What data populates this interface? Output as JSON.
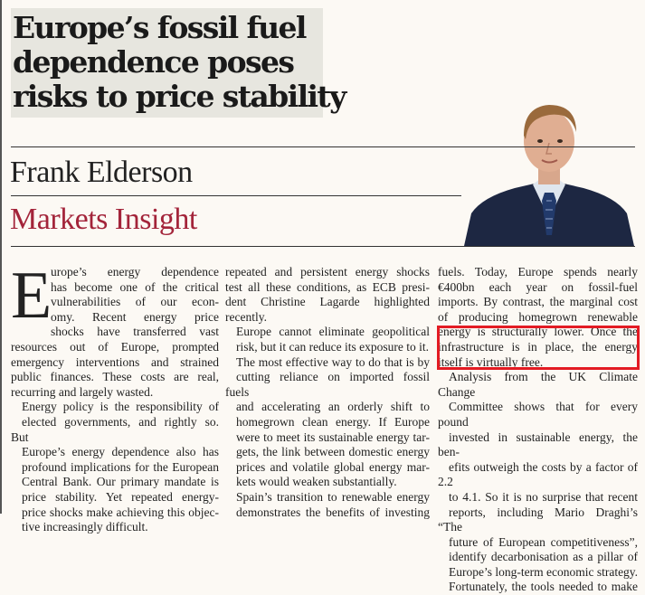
{
  "article": {
    "headline": {
      "line1": "Europe’s fossil fuel",
      "line2": "dependence poses",
      "line3": "risks to price stability"
    },
    "author": "Frank Elderson",
    "column": "Markets Insight",
    "photo_alt": "Portrait of Frank Elderson",
    "colors": {
      "background": "#fcf9f4",
      "headline_box": "#e7e6df",
      "column_name": "#a3243a",
      "highlight": "#e31b23"
    }
  },
  "body": {
    "col1": {
      "dropcap": "E",
      "p1_lines": [
        "urope’s energy dependence",
        "has become one of the critical",
        "vulnerabilities of our econ-",
        "omy. Recent energy price",
        "shocks have transferred vast"
      ],
      "p1_rest": [
        "resources out of Europe, prompted",
        "emergency interventions and strained",
        "public finances. These costs are real,",
        "recurring and largely wasted."
      ],
      "p2": [
        "Energy policy is the responsibility of",
        "elected governments, and rightly so. But",
        "Europe’s energy dependence also has",
        "profound implications for the European",
        "Central Bank. Our primary mandate is",
        "price stability. Yet repeated energy-",
        "price shocks make achieving this objec-",
        "tive increasingly difficult."
      ]
    },
    "col2": {
      "p1": [
        "repeated and persistent energy shocks",
        "test all these conditions, as ECB presi-",
        "dent Christine Lagarde highlighted",
        "recently."
      ],
      "p2": [
        "Europe cannot eliminate geopolitical",
        "risk, but it can reduce its exposure to it."
      ],
      "p3": [
        "The most effective way to do that is by",
        "cutting reliance on imported fossil fuels",
        "and accelerating an orderly shift to",
        "homegrown clean energy. If Europe",
        "were to meet its sustainable energy tar-",
        "gets, the link between domestic energy",
        "prices and volatile global energy mar-",
        "kets would weaken substantially."
      ],
      "p4": [
        "Spain’s transition to renewable energy",
        "demonstrates the benefits of investing"
      ]
    },
    "col3": {
      "p1": [
        "fuels. Today, Europe spends nearly",
        "€400bn each year on fossil-fuel",
        "imports. By contrast, the marginal cost",
        "of producing homegrown renewable"
      ],
      "p1_highlighted": [
        "energy is structurally lower. Once the",
        "infrastructure is in place, the energy",
        "itself is virtually free."
      ],
      "p2": [
        "Analysis from the UK Climate Change",
        "Committee shows that for every pound",
        "invested in sustainable energy, the ben-",
        "efits outweigh the costs by a factor of 2.2",
        "to 4.1. So it is no surprise that recent",
        "reports, including Mario Draghi’s “The",
        "future of European competitiveness”,",
        "identify decarbonisation as a pillar of",
        "Europe’s long-term economic strategy."
      ],
      "p3": [
        "Fortunately, the tools needed to make"
      ]
    }
  }
}
